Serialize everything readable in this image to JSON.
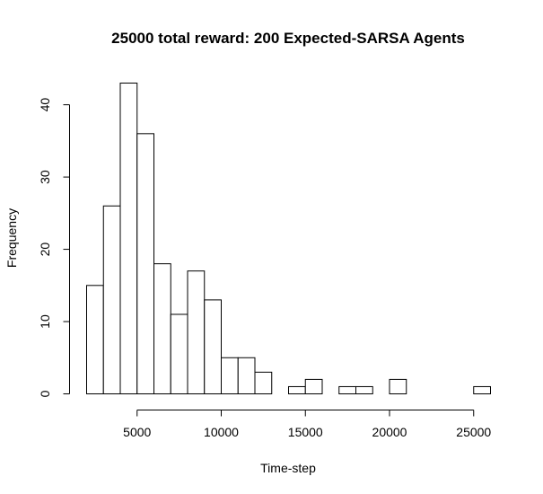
{
  "chart_data": {
    "type": "bar",
    "title": "25000 total reward: 200 Expected-SARSA Agents",
    "xlabel": "Time-step",
    "ylabel": "Frequency",
    "bin_width": 1000,
    "bins": [
      {
        "start": 2000,
        "end": 3000,
        "count": 15
      },
      {
        "start": 3000,
        "end": 4000,
        "count": 26
      },
      {
        "start": 4000,
        "end": 5000,
        "count": 43
      },
      {
        "start": 5000,
        "end": 6000,
        "count": 36
      },
      {
        "start": 6000,
        "end": 7000,
        "count": 18
      },
      {
        "start": 7000,
        "end": 8000,
        "count": 11
      },
      {
        "start": 8000,
        "end": 9000,
        "count": 17
      },
      {
        "start": 9000,
        "end": 10000,
        "count": 13
      },
      {
        "start": 10000,
        "end": 11000,
        "count": 5
      },
      {
        "start": 11000,
        "end": 12000,
        "count": 5
      },
      {
        "start": 12000,
        "end": 13000,
        "count": 3
      },
      {
        "start": 13000,
        "end": 14000,
        "count": 0
      },
      {
        "start": 14000,
        "end": 15000,
        "count": 1
      },
      {
        "start": 15000,
        "end": 16000,
        "count": 2
      },
      {
        "start": 16000,
        "end": 17000,
        "count": 0
      },
      {
        "start": 17000,
        "end": 18000,
        "count": 1
      },
      {
        "start": 18000,
        "end": 19000,
        "count": 1
      },
      {
        "start": 19000,
        "end": 20000,
        "count": 0
      },
      {
        "start": 20000,
        "end": 21000,
        "count": 2
      },
      {
        "start": 21000,
        "end": 22000,
        "count": 0
      },
      {
        "start": 22000,
        "end": 23000,
        "count": 0
      },
      {
        "start": 23000,
        "end": 24000,
        "count": 0
      },
      {
        "start": 24000,
        "end": 25000,
        "count": 0
      },
      {
        "start": 25000,
        "end": 26000,
        "count": 1
      }
    ],
    "xlim": [
      2000,
      26000
    ],
    "ylim": [
      0,
      43
    ],
    "x_ticks": [
      5000,
      10000,
      15000,
      20000,
      25000
    ],
    "x_tick_labels": [
      "5000",
      "10000",
      "15000",
      "20000",
      "25000"
    ],
    "y_ticks": [
      0,
      10,
      20,
      30,
      40
    ],
    "y_tick_labels": [
      "0",
      "10",
      "20",
      "30",
      "40"
    ],
    "grid": false,
    "bar_fill": "#ffffff",
    "bar_stroke": "#000000"
  }
}
